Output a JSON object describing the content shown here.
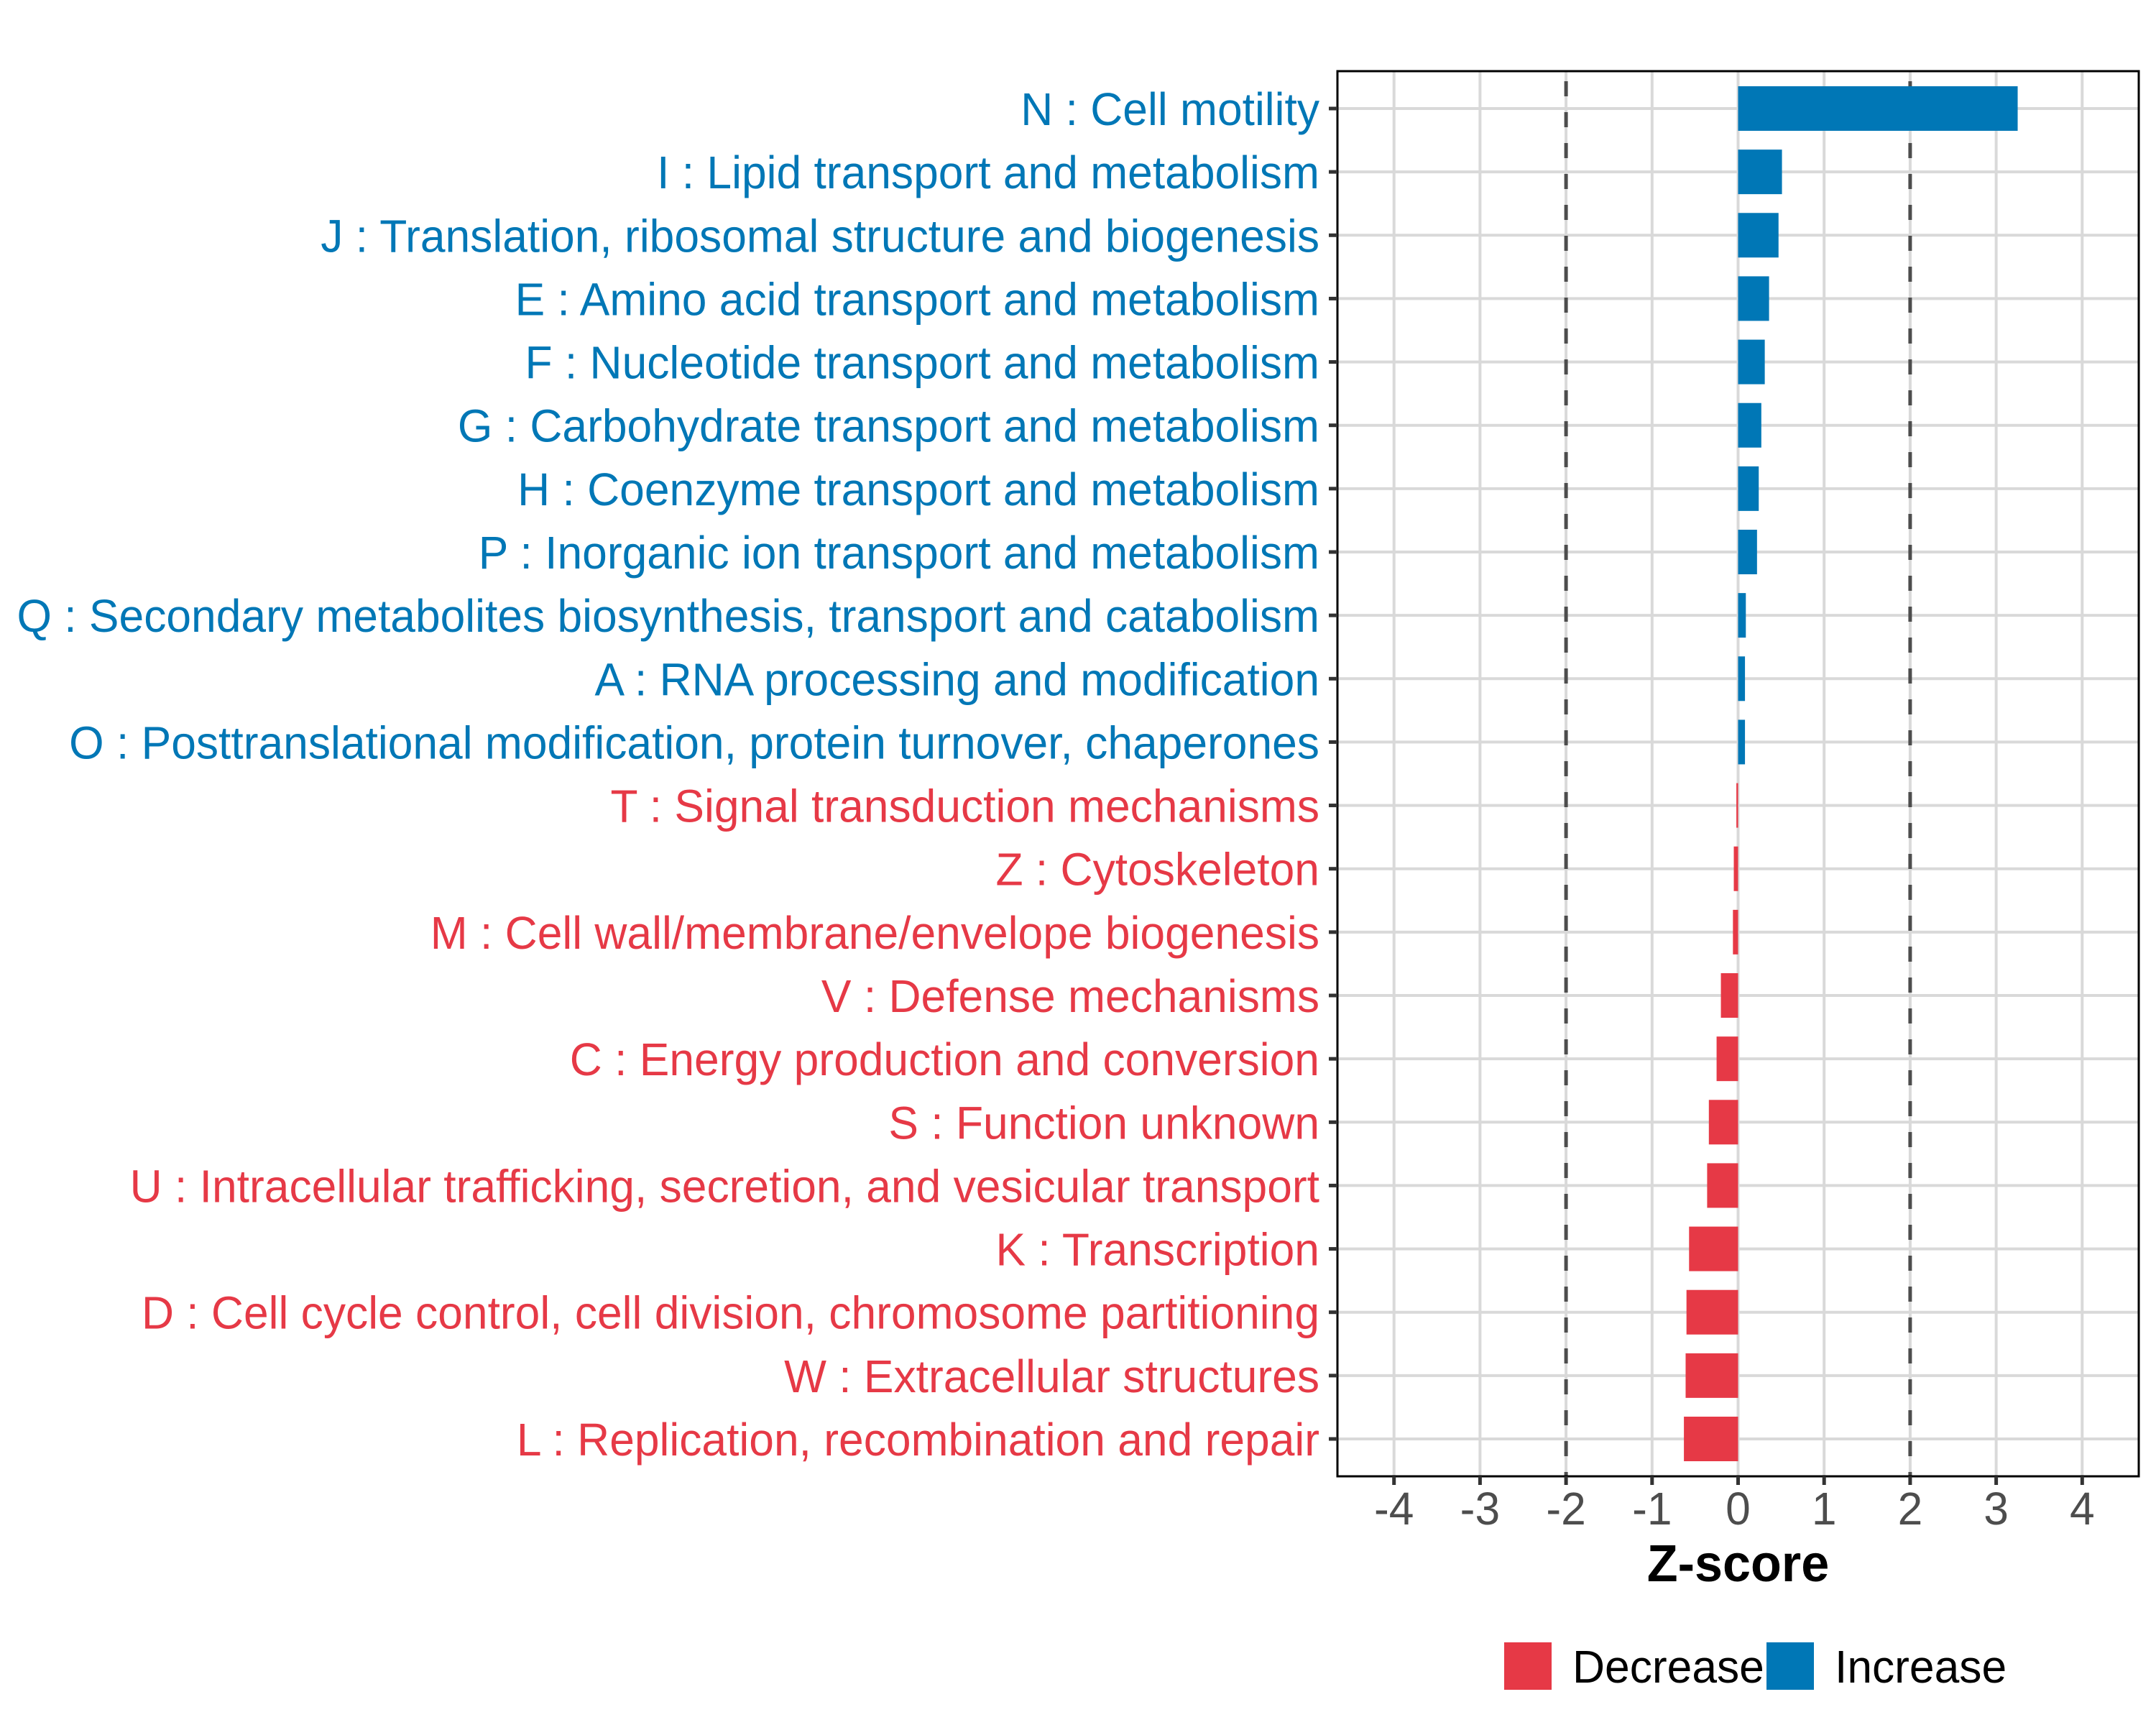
{
  "chart_data": {
    "type": "bar",
    "orientation": "horizontal",
    "title": "",
    "xlabel": "Z-score",
    "ylabel": "",
    "xlim": [
      -4.65,
      4.65
    ],
    "xticks": [
      -4,
      -3,
      -2,
      -1,
      0,
      1,
      2,
      3,
      4
    ],
    "xtick_labels": [
      "-4",
      "-3",
      "-2",
      "-1",
      "0",
      "1",
      "2",
      "3",
      "4"
    ],
    "reference_lines": [
      {
        "x": -2,
        "style": "dashed"
      },
      {
        "x": 2,
        "style": "dashed"
      }
    ],
    "grid": true,
    "legend": {
      "position": "bottom",
      "entries": [
        {
          "label": "Decrease",
          "color": "#E63946"
        },
        {
          "label": "Increase",
          "color": "#0077B6"
        }
      ]
    },
    "categories": [
      "N : Cell motility",
      "I : Lipid transport and metabolism",
      "J : Translation, ribosomal structure and biogenesis",
      "E : Amino acid transport and metabolism",
      "F : Nucleotide transport and metabolism",
      "G : Carbohydrate transport and metabolism",
      "H : Coenzyme transport and metabolism",
      "P : Inorganic ion transport and metabolism",
      "Q : Secondary metabolites biosynthesis, transport and catabolism",
      "A : RNA processing and modification",
      "O : Posttranslational modification, protein turnover, chaperones",
      "T : Signal transduction mechanisms",
      "Z : Cytoskeleton",
      "M : Cell wall/membrane/envelope biogenesis",
      "V : Defense mechanisms",
      "C : Energy production and conversion",
      "S : Function unknown",
      "U : Intracellular trafficking, secretion, and vesicular transport",
      "K : Transcription",
      "D : Cell cycle control, cell division, chromosome partitioning",
      "W : Extracellular structures",
      "L : Replication, recombination and repair"
    ],
    "values": [
      3.25,
      0.51,
      0.47,
      0.36,
      0.31,
      0.27,
      0.24,
      0.22,
      0.09,
      0.08,
      0.08,
      -0.02,
      -0.05,
      -0.06,
      -0.2,
      -0.25,
      -0.34,
      -0.36,
      -0.57,
      -0.6,
      -0.61,
      -0.63
    ],
    "groups": [
      "Increase",
      "Increase",
      "Increase",
      "Increase",
      "Increase",
      "Increase",
      "Increase",
      "Increase",
      "Increase",
      "Increase",
      "Increase",
      "Decrease",
      "Decrease",
      "Decrease",
      "Decrease",
      "Decrease",
      "Decrease",
      "Decrease",
      "Decrease",
      "Decrease",
      "Decrease",
      "Decrease"
    ],
    "colors": {
      "Increase": "#0077B6",
      "Decrease": "#E63946",
      "grid": "#D9D9D9",
      "reference_line": "#4D4D4D",
      "tick_text": "#4D4D4D"
    }
  }
}
